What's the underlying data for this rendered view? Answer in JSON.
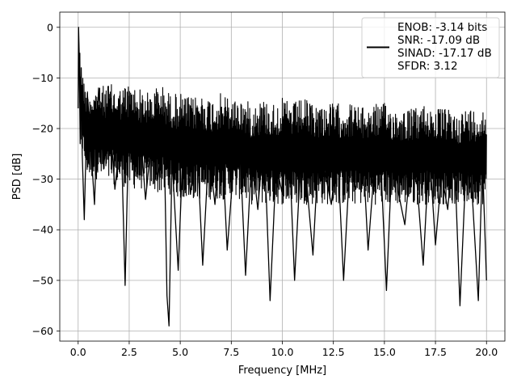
{
  "chart_data": {
    "type": "line",
    "title": "",
    "xlabel": "Frequency [MHz]",
    "ylabel": "PSD [dB]",
    "xlim": [
      -0.9,
      20.9
    ],
    "ylim": [
      -62,
      3
    ],
    "xticks": [
      0.0,
      2.5,
      5.0,
      7.5,
      10.0,
      12.5,
      15.0,
      17.5,
      20.0
    ],
    "xtick_labels": [
      "0.0",
      "2.5",
      "5.0",
      "7.5",
      "10.0",
      "12.5",
      "15.0",
      "17.5",
      "20.0"
    ],
    "yticks": [
      0,
      -10,
      -20,
      -30,
      -40,
      -50,
      -60
    ],
    "ytick_labels": [
      "0",
      "−10",
      "−20",
      "−30",
      "−40",
      "−50",
      "−60"
    ],
    "grid": true,
    "legend_position": "top-right",
    "series": [
      {
        "color": "#000000",
        "x": [
          0.0,
          0.02,
          0.05,
          0.1,
          0.15,
          0.2,
          0.3,
          0.45,
          0.6,
          0.8,
          1.0,
          1.25,
          1.5,
          1.8,
          2.1,
          2.3,
          2.5,
          2.75,
          3.0,
          3.3,
          3.6,
          3.9,
          4.2,
          4.35,
          4.45,
          4.6,
          4.9,
          5.2,
          5.5,
          5.8,
          6.1,
          6.4,
          6.7,
          7.0,
          7.3,
          7.6,
          7.9,
          8.2,
          8.5,
          8.8,
          9.1,
          9.4,
          9.7,
          10.0,
          10.3,
          10.6,
          10.9,
          11.2,
          11.5,
          11.8,
          12.1,
          12.4,
          12.7,
          13.0,
          13.3,
          13.6,
          13.9,
          14.2,
          14.5,
          14.8,
          15.1,
          15.4,
          15.7,
          16.0,
          16.3,
          16.6,
          16.9,
          17.2,
          17.5,
          17.8,
          18.1,
          18.4,
          18.7,
          19.0,
          19.3,
          19.6,
          19.8,
          20.0
        ],
        "y": [
          -16,
          0,
          -5,
          -23,
          -8,
          -25,
          -38,
          -13,
          -22,
          -35,
          -12,
          -28,
          -15,
          -32,
          -20,
          -51,
          -16,
          -27,
          -18,
          -34,
          -22,
          -30,
          -19,
          -53,
          -59,
          -26,
          -48,
          -17,
          -33,
          -21,
          -47,
          -24,
          -35,
          -19,
          -44,
          -28,
          -22,
          -49,
          -25,
          -36,
          -21,
          -54,
          -27,
          -33,
          -20,
          -50,
          -26,
          -31,
          -45,
          -22,
          -29,
          -35,
          -24,
          -50,
          -27,
          -32,
          -21,
          -44,
          -28,
          -25,
          -52,
          -23,
          -33,
          -39,
          -26,
          -31,
          -47,
          -24,
          -43,
          -29,
          -36,
          -22,
          -55,
          -27,
          -33,
          -54,
          -26,
          -50
        ]
      }
    ],
    "envelope": {
      "x": [
        0.0,
        0.02,
        0.1,
        0.3,
        0.5,
        1.0,
        1.5,
        2.0,
        2.5,
        3.0,
        3.5,
        4.0,
        4.5,
        5.0,
        5.5,
        6.0,
        6.5,
        7.0,
        7.5,
        8.0,
        8.5,
        9.0,
        9.5,
        10.0,
        10.5,
        11.0,
        11.5,
        12.0,
        12.5,
        13.0,
        13.5,
        14.0,
        14.5,
        15.0,
        15.5,
        16.0,
        16.5,
        17.0,
        17.5,
        18.0,
        18.5,
        19.0,
        19.5,
        20.0
      ],
      "upper": [
        -16,
        0,
        -5,
        -11,
        -12,
        -12,
        -11,
        -12,
        -11,
        -12,
        -13,
        -11,
        -13,
        -13,
        -14,
        -13,
        -14,
        -13,
        -14,
        -14,
        -15,
        -14,
        -15,
        -14,
        -15,
        -14,
        -15,
        -15,
        -15,
        -15,
        -15,
        -16,
        -15,
        -15,
        -16,
        -16,
        -16,
        -15,
        -16,
        -16,
        -17,
        -16,
        -16,
        -16
      ],
      "lower": [
        -16,
        -10,
        -23,
        -27,
        -30,
        -30,
        -31,
        -31,
        -32,
        -32,
        -32,
        -33,
        -33,
        -34,
        -34,
        -34,
        -34,
        -34,
        -34,
        -34,
        -35,
        -35,
        -35,
        -35,
        -35,
        -35,
        -35,
        -35,
        -35,
        -35,
        -35,
        -35,
        -35,
        -35,
        -35,
        -35,
        -35,
        -35,
        -35,
        -35,
        -35,
        -35,
        -35,
        -35
      ]
    },
    "legend_lines": [
      "ENOB: -3.14 bits",
      "SNR: -17.09 dB",
      "SINAD: -17.17 dB",
      "SFDR: 3.12"
    ]
  }
}
